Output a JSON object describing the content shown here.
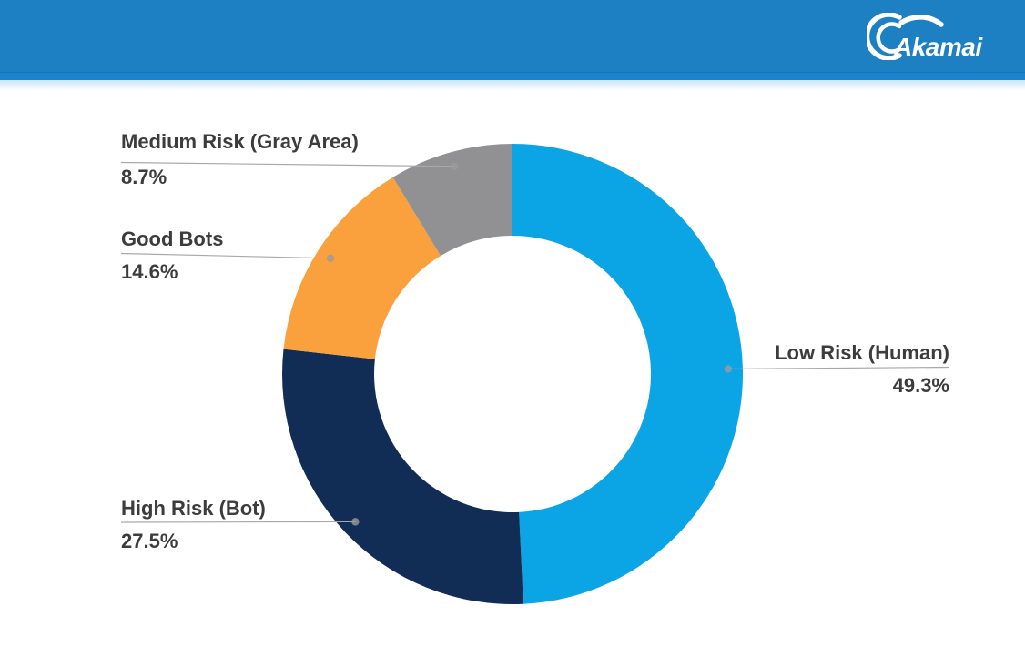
{
  "header": {
    "brand": "Akamai",
    "background_color": "#1d80c3",
    "accent_strip_color": "#1a85cf",
    "logo_color": "#ffffff"
  },
  "chart_data": {
    "type": "pie",
    "subtype": "donut",
    "title": "",
    "start_angle_deg": 0,
    "direction": "clockwise",
    "inner_radius_ratio": 0.6,
    "legend_position": "callout-labels",
    "label_color": "#3c3c3c",
    "leader_line_color": "#a8a8a8",
    "slices": [
      {
        "label": "Low Risk (Human)",
        "value": 49.3,
        "value_label": "49.3%",
        "color": "#0ba4e4"
      },
      {
        "label": "High Risk (Bot)",
        "value": 27.5,
        "value_label": "27.5%",
        "color": "#112d55"
      },
      {
        "label": "Good Bots",
        "value": 14.6,
        "value_label": "14.6%",
        "color": "#faa13e"
      },
      {
        "label": "Medium Risk (Gray Area)",
        "value": 8.7,
        "value_label": "8.7%",
        "color": "#919194"
      }
    ]
  }
}
